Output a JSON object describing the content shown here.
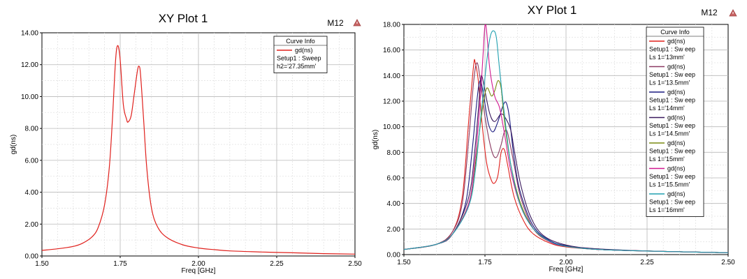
{
  "chart_data": [
    {
      "type": "line",
      "title": "XY Plot 1",
      "marker_label": "M12",
      "xlabel": "Freq [GHz]",
      "ylabel": "gd(ns)",
      "xlim": [
        1.5,
        2.5
      ],
      "ylim": [
        0,
        14
      ],
      "xticks": [
        1.5,
        1.75,
        2.0,
        2.25,
        2.5
      ],
      "xtick_labels": [
        "1.50",
        "1.75",
        "2.00",
        "2.25",
        "2.50"
      ],
      "yticks": [
        0,
        2,
        4,
        6,
        8,
        10,
        12,
        14
      ],
      "ytick_labels": [
        "0.00",
        "2.00",
        "4.00",
        "6.00",
        "8.00",
        "10.00",
        "12.00",
        "14.00"
      ],
      "grid": true,
      "legend_title": "Curve Info",
      "legend_position": "top-right",
      "series": [
        {
          "name": "gd(ns)",
          "detail": [
            "Setup1 : Sweep",
            "h2='27.35mm'"
          ],
          "color": "#e0201c",
          "points": [
            [
              1.5,
              0.35
            ],
            [
              1.55,
              0.45
            ],
            [
              1.6,
              0.6
            ],
            [
              1.63,
              0.8
            ],
            [
              1.66,
              1.2
            ],
            [
              1.68,
              1.8
            ],
            [
              1.7,
              3.2
            ],
            [
              1.715,
              5.5
            ],
            [
              1.725,
              8.5
            ],
            [
              1.735,
              12.2
            ],
            [
              1.742,
              13.2
            ],
            [
              1.75,
              12.3
            ],
            [
              1.76,
              9.5
            ],
            [
              1.77,
              8.6
            ],
            [
              1.775,
              8.4
            ],
            [
              1.785,
              8.8
            ],
            [
              1.795,
              10.2
            ],
            [
              1.805,
              11.6
            ],
            [
              1.81,
              11.9
            ],
            [
              1.815,
              11.4
            ],
            [
              1.825,
              8.5
            ],
            [
              1.835,
              5.5
            ],
            [
              1.85,
              3.0
            ],
            [
              1.87,
              1.8
            ],
            [
              1.9,
              1.15
            ],
            [
              1.95,
              0.7
            ],
            [
              2.0,
              0.5
            ],
            [
              2.05,
              0.4
            ],
            [
              2.1,
              0.32
            ],
            [
              2.2,
              0.25
            ],
            [
              2.3,
              0.2
            ],
            [
              2.4,
              0.15
            ],
            [
              2.5,
              0.12
            ]
          ]
        }
      ]
    },
    {
      "type": "line",
      "title": "XY Plot 1",
      "marker_label": "M12",
      "xlabel": "Freq [GHz]",
      "ylabel": "gd(ns)",
      "xlim": [
        1.5,
        2.5
      ],
      "ylim": [
        0,
        18
      ],
      "xticks": [
        1.5,
        1.75,
        2.0,
        2.25,
        2.5
      ],
      "xtick_labels": [
        "1.50",
        "1.75",
        "2.00",
        "2.25",
        "2.50"
      ],
      "yticks": [
        0,
        2,
        4,
        6,
        8,
        10,
        12,
        14,
        16,
        18
      ],
      "ytick_labels": [
        "0.00",
        "2.00",
        "4.00",
        "6.00",
        "8.00",
        "10.00",
        "12.00",
        "14.00",
        "16.00",
        "18.00"
      ],
      "grid": true,
      "legend_title": "Curve Info",
      "legend_position": "top-right",
      "series": [
        {
          "name": "gd(ns)",
          "detail": [
            "Setup1 : Sw eep",
            "Ls 1='13mm'"
          ],
          "color": "#e0201c",
          "points": [
            [
              1.5,
              0.4
            ],
            [
              1.6,
              0.8
            ],
            [
              1.65,
              1.8
            ],
            [
              1.68,
              4.5
            ],
            [
              1.7,
              10.5
            ],
            [
              1.715,
              14.8
            ],
            [
              1.72,
              15.0
            ],
            [
              1.73,
              13.5
            ],
            [
              1.74,
              10.5
            ],
            [
              1.755,
              7.2
            ],
            [
              1.77,
              5.8
            ],
            [
              1.78,
              5.6
            ],
            [
              1.79,
              6.2
            ],
            [
              1.8,
              8.0
            ],
            [
              1.81,
              8.2
            ],
            [
              1.82,
              7.0
            ],
            [
              1.84,
              4.5
            ],
            [
              1.87,
              2.6
            ],
            [
              1.9,
              1.6
            ],
            [
              1.95,
              0.9
            ],
            [
              2.0,
              0.6
            ],
            [
              2.1,
              0.4
            ],
            [
              2.3,
              0.25
            ],
            [
              2.5,
              0.15
            ]
          ]
        },
        {
          "name": "gd(ns)",
          "detail": [
            "Setup1 : Sw eep",
            "Ls 1='13.5mm'"
          ],
          "color": "#8b3a62",
          "points": [
            [
              1.5,
              0.4
            ],
            [
              1.6,
              0.8
            ],
            [
              1.65,
              1.8
            ],
            [
              1.68,
              4.0
            ],
            [
              1.7,
              9.0
            ],
            [
              1.715,
              13.5
            ],
            [
              1.725,
              15.0
            ],
            [
              1.735,
              13.8
            ],
            [
              1.75,
              10.8
            ],
            [
              1.77,
              8.2
            ],
            [
              1.785,
              7.6
            ],
            [
              1.8,
              8.6
            ],
            [
              1.81,
              9.6
            ],
            [
              1.82,
              9.5
            ],
            [
              1.84,
              7.0
            ],
            [
              1.86,
              4.5
            ],
            [
              1.9,
              2.0
            ],
            [
              1.95,
              1.0
            ],
            [
              2.0,
              0.65
            ],
            [
              2.1,
              0.4
            ],
            [
              2.3,
              0.25
            ],
            [
              2.5,
              0.15
            ]
          ]
        },
        {
          "name": "gd(ns)",
          "detail": [
            "Setup1 : Sw eep",
            "Ls 1='14mm'"
          ],
          "color": "#1a1a80",
          "points": [
            [
              1.5,
              0.4
            ],
            [
              1.6,
              0.8
            ],
            [
              1.65,
              1.6
            ],
            [
              1.69,
              4.0
            ],
            [
              1.71,
              8.0
            ],
            [
              1.725,
              12.0
            ],
            [
              1.735,
              13.6
            ],
            [
              1.745,
              12.6
            ],
            [
              1.76,
              10.3
            ],
            [
              1.775,
              9.6
            ],
            [
              1.79,
              10.4
            ],
            [
              1.805,
              11.6
            ],
            [
              1.815,
              11.9
            ],
            [
              1.825,
              10.8
            ],
            [
              1.84,
              7.5
            ],
            [
              1.86,
              4.8
            ],
            [
              1.9,
              2.2
            ],
            [
              1.95,
              1.1
            ],
            [
              2.0,
              0.7
            ],
            [
              2.1,
              0.4
            ],
            [
              2.3,
              0.25
            ],
            [
              2.5,
              0.15
            ]
          ]
        },
        {
          "name": "gd(ns)",
          "detail": [
            "Setup1 : Sw eep",
            "Ls 1='14.5mm'"
          ],
          "color": "#3a1a5e",
          "points": [
            [
              1.5,
              0.4
            ],
            [
              1.6,
              0.8
            ],
            [
              1.65,
              1.6
            ],
            [
              1.7,
              4.5
            ],
            [
              1.72,
              8.5
            ],
            [
              1.735,
              13.0
            ],
            [
              1.74,
              14.0
            ],
            [
              1.75,
              12.8
            ],
            [
              1.765,
              11.0
            ],
            [
              1.78,
              10.4
            ],
            [
              1.8,
              11.0
            ],
            [
              1.815,
              10.6
            ],
            [
              1.83,
              9.7
            ],
            [
              1.84,
              8.2
            ],
            [
              1.86,
              5.5
            ],
            [
              1.89,
              3.0
            ],
            [
              1.93,
              1.5
            ],
            [
              2.0,
              0.75
            ],
            [
              2.1,
              0.45
            ],
            [
              2.3,
              0.25
            ],
            [
              2.5,
              0.15
            ]
          ]
        },
        {
          "name": "gd(ns)",
          "detail": [
            "Setup1 : Sw eep",
            "Ls 1='15mm'"
          ],
          "color": "#7a8a10",
          "points": [
            [
              1.5,
              0.4
            ],
            [
              1.6,
              0.8
            ],
            [
              1.65,
              1.6
            ],
            [
              1.7,
              4.0
            ],
            [
              1.72,
              7.0
            ],
            [
              1.74,
              11.0
            ],
            [
              1.755,
              13.0
            ],
            [
              1.77,
              12.4
            ],
            [
              1.78,
              12.8
            ],
            [
              1.79,
              13.6
            ],
            [
              1.8,
              13.0
            ],
            [
              1.81,
              10.5
            ],
            [
              1.83,
              7.0
            ],
            [
              1.86,
              4.0
            ],
            [
              1.9,
              2.0
            ],
            [
              1.95,
              1.0
            ],
            [
              2.0,
              0.65
            ],
            [
              2.1,
              0.4
            ],
            [
              2.3,
              0.25
            ],
            [
              2.5,
              0.15
            ]
          ]
        },
        {
          "name": "gd(ns)",
          "detail": [
            "Setup1 : Sw eep",
            "Ls 1='15.5mm'"
          ],
          "color": "#d01890",
          "points": [
            [
              1.5,
              0.4
            ],
            [
              1.6,
              0.8
            ],
            [
              1.65,
              1.6
            ],
            [
              1.7,
              4.0
            ],
            [
              1.72,
              7.5
            ],
            [
              1.735,
              12.0
            ],
            [
              1.745,
              16.0
            ],
            [
              1.75,
              17.9
            ],
            [
              1.755,
              17.5
            ],
            [
              1.765,
              14.5
            ],
            [
              1.78,
              12.4
            ],
            [
              1.795,
              11.5
            ],
            [
              1.81,
              9.5
            ],
            [
              1.83,
              6.5
            ],
            [
              1.86,
              3.8
            ],
            [
              1.9,
              2.0
            ],
            [
              1.95,
              1.0
            ],
            [
              2.0,
              0.65
            ],
            [
              2.1,
              0.4
            ],
            [
              2.3,
              0.25
            ],
            [
              2.5,
              0.15
            ]
          ]
        },
        {
          "name": "gd(ns)",
          "detail": [
            "Setup1 : Sw eep",
            "Ls 1='16mm'"
          ],
          "color": "#20a0b0",
          "points": [
            [
              1.5,
              0.4
            ],
            [
              1.6,
              0.8
            ],
            [
              1.65,
              1.6
            ],
            [
              1.7,
              3.8
            ],
            [
              1.72,
              6.5
            ],
            [
              1.74,
              11.5
            ],
            [
              1.755,
              15.0
            ],
            [
              1.765,
              16.9
            ],
            [
              1.775,
              17.5
            ],
            [
              1.785,
              17.0
            ],
            [
              1.795,
              14.5
            ],
            [
              1.81,
              11.0
            ],
            [
              1.83,
              7.0
            ],
            [
              1.86,
              3.8
            ],
            [
              1.9,
              2.0
            ],
            [
              1.95,
              1.05
            ],
            [
              2.0,
              0.65
            ],
            [
              2.1,
              0.4
            ],
            [
              2.3,
              0.25
            ],
            [
              2.5,
              0.15
            ]
          ]
        }
      ]
    }
  ]
}
